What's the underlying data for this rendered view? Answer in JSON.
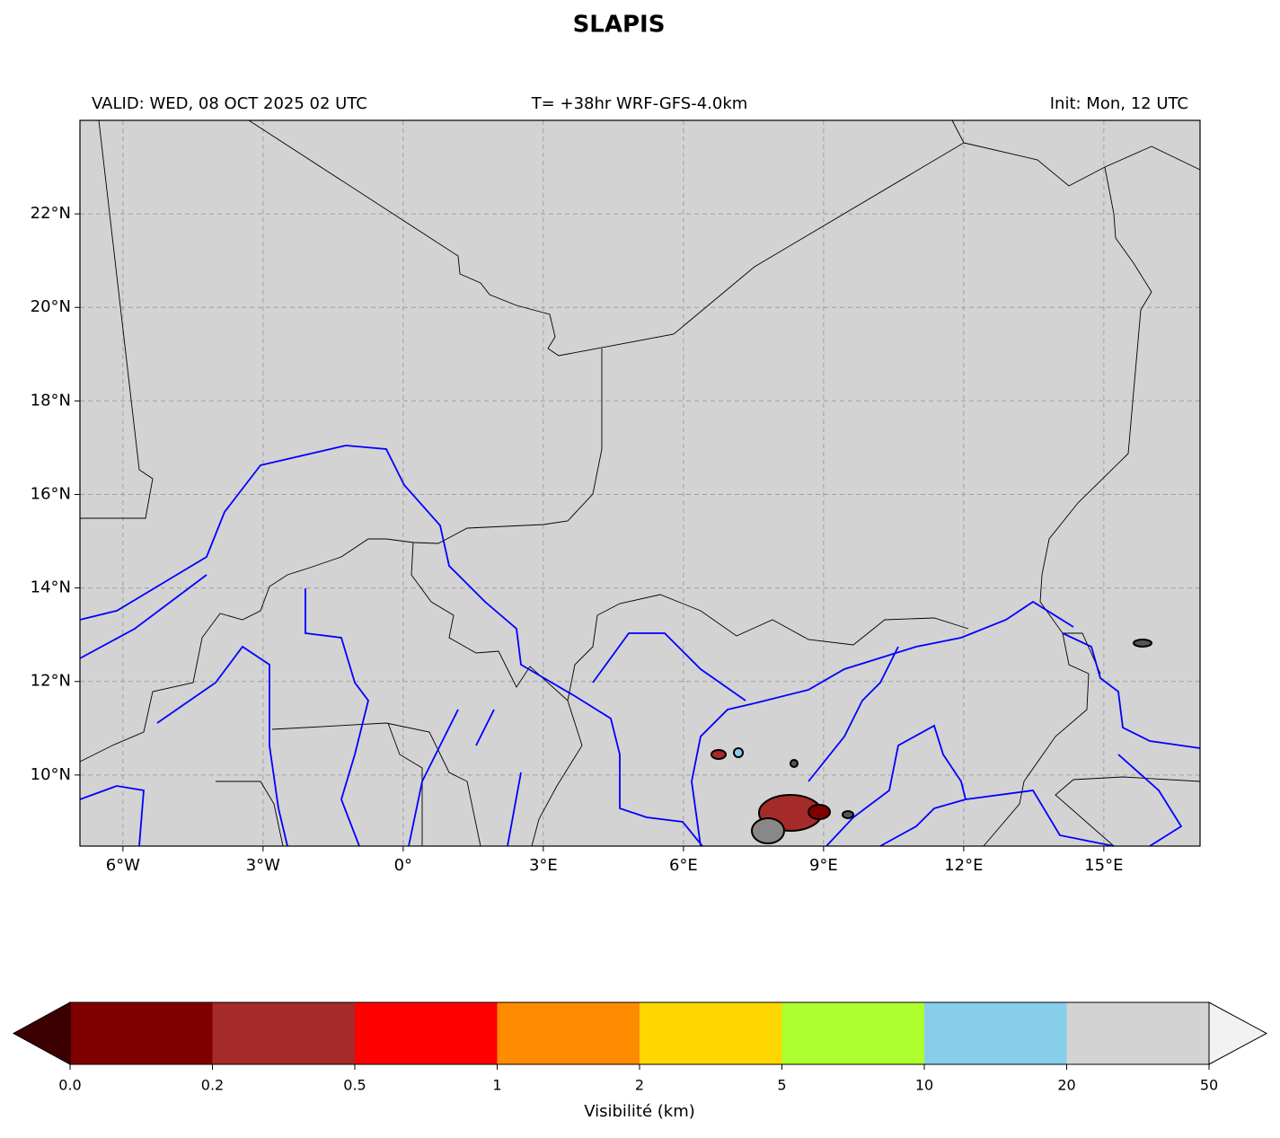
{
  "chart_data": {
    "type": "map",
    "title": "SLAPIS",
    "subtitle_left": "VALID: WED, 08 OCT 2025 02 UTC",
    "subtitle_center": "T= +38hr WRF-GFS-4.0km",
    "subtitle_right": "Init: Mon, 12 UTC",
    "xlim": [
      -6.92,
      17.06
    ],
    "ylim": [
      8.48,
      24.0
    ],
    "xticks": [
      {
        "value": -6,
        "label": "6°W"
      },
      {
        "value": -3,
        "label": "3°W"
      },
      {
        "value": 0,
        "label": "0°"
      },
      {
        "value": 3,
        "label": "3°E"
      },
      {
        "value": 6,
        "label": "6°E"
      },
      {
        "value": 9,
        "label": "9°E"
      },
      {
        "value": 12,
        "label": "12°E"
      },
      {
        "value": 15,
        "label": "15°E"
      }
    ],
    "yticks": [
      {
        "value": 10,
        "label": "10°N"
      },
      {
        "value": 12,
        "label": "12°N"
      },
      {
        "value": 14,
        "label": "14°N"
      },
      {
        "value": 16,
        "label": "16°N"
      },
      {
        "value": 18,
        "label": "18°N"
      },
      {
        "value": 20,
        "label": "20°N"
      },
      {
        "value": 22,
        "label": "22°N"
      }
    ],
    "grid": true,
    "colorbar": {
      "label": "Visibilité (km)",
      "ticks": [
        {
          "value": 0,
          "label": "0.0"
        },
        0.2,
        0.5,
        1,
        2,
        5,
        10,
        20,
        50
      ],
      "colors": [
        "#800000",
        "#a52a2a",
        "#ff0000",
        "#ff8c00",
        "#ffd700",
        "#adff2f",
        "#87ceeb",
        "#d3d3d3"
      ],
      "extend_colors": [
        "#3d0000",
        "#f2f2f2"
      ]
    }
  }
}
